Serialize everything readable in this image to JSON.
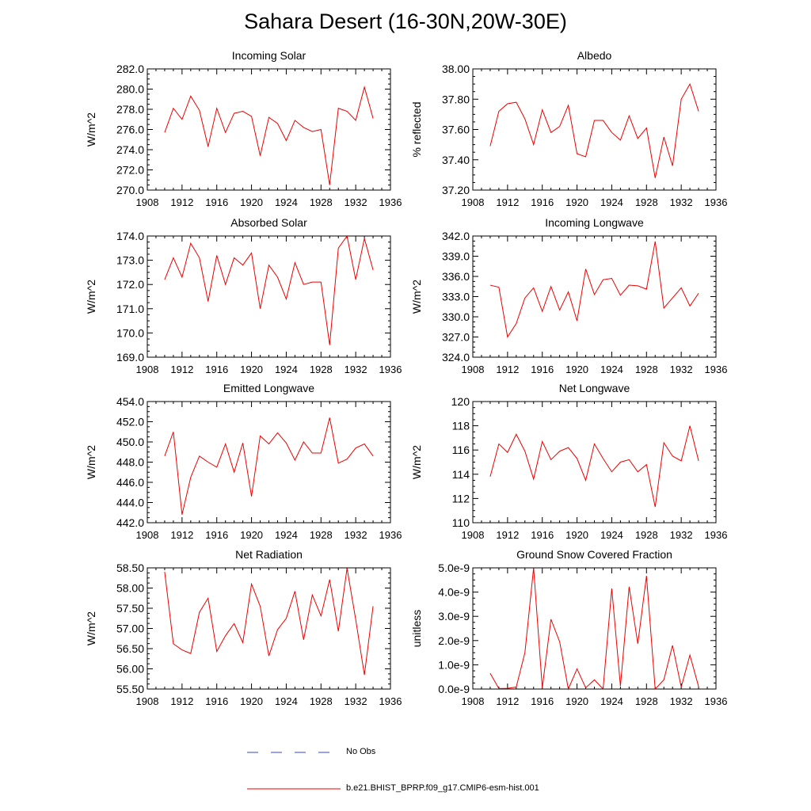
{
  "title": "Sahara Desert (16-30N,20W-30E)",
  "legend": {
    "items": [
      {
        "label": "No Obs",
        "color": "#3344cc",
        "style": "dashed"
      },
      {
        "label": "b.e21.BHIST_BPRP.f09_g17.CMIP6-esm-hist.001",
        "color": "#ee0000",
        "style": "solid"
      }
    ]
  },
  "colors": {
    "series": "#ee0000",
    "axis": "#000000"
  },
  "chart_data": [
    {
      "type": "line",
      "title": "Incoming Solar",
      "ylabel": "W/m^2",
      "xlim": [
        1908,
        1936
      ],
      "xticks": [
        "1908",
        "1912",
        "1916",
        "1920",
        "1924",
        "1928",
        "1932",
        "1936"
      ],
      "ylim": [
        270,
        282
      ],
      "yticks": [
        "270.0",
        "272.0",
        "274.0",
        "276.0",
        "278.0",
        "280.0",
        "282.0"
      ],
      "x": [
        1910,
        1911,
        1912,
        1913,
        1914,
        1915,
        1916,
        1917,
        1918,
        1919,
        1920,
        1921,
        1922,
        1923,
        1924,
        1925,
        1926,
        1927,
        1928,
        1929,
        1930,
        1931,
        1932,
        1933,
        1934
      ],
      "series": [
        {
          "values": [
            275.7,
            278.1,
            277.0,
            279.3,
            277.9,
            274.3,
            278.1,
            275.7,
            277.6,
            277.8,
            277.3,
            273.4,
            277.2,
            276.6,
            274.9,
            276.9,
            276.2,
            275.8,
            276.0,
            270.5,
            278.1,
            277.8,
            276.9,
            280.2,
            277.1
          ]
        }
      ]
    },
    {
      "type": "line",
      "title": "Albedo",
      "ylabel": "% reflected",
      "xlim": [
        1908,
        1936
      ],
      "xticks": [
        "1908",
        "1912",
        "1916",
        "1920",
        "1924",
        "1928",
        "1932",
        "1936"
      ],
      "ylim": [
        37.2,
        38.0
      ],
      "yticks": [
        "37.20",
        "37.40",
        "37.60",
        "37.80",
        "38.00"
      ],
      "x": [
        1910,
        1911,
        1912,
        1913,
        1914,
        1915,
        1916,
        1917,
        1918,
        1919,
        1920,
        1921,
        1922,
        1923,
        1924,
        1925,
        1926,
        1927,
        1928,
        1929,
        1930,
        1931,
        1932,
        1933,
        1934
      ],
      "series": [
        {
          "values": [
            37.49,
            37.72,
            37.77,
            37.78,
            37.67,
            37.5,
            37.73,
            37.58,
            37.62,
            37.76,
            37.44,
            37.42,
            37.66,
            37.66,
            37.58,
            37.53,
            37.69,
            37.54,
            37.61,
            37.28,
            37.55,
            37.36,
            37.8,
            37.9,
            37.72
          ]
        }
      ]
    },
    {
      "type": "line",
      "title": "Absorbed Solar",
      "ylabel": "W/m^2",
      "xlim": [
        1908,
        1936
      ],
      "xticks": [
        "1908",
        "1912",
        "1916",
        "1920",
        "1924",
        "1928",
        "1932",
        "1936"
      ],
      "ylim": [
        169,
        174
      ],
      "yticks": [
        "169.0",
        "170.0",
        "171.0",
        "172.0",
        "173.0",
        "174.0"
      ],
      "x": [
        1910,
        1911,
        1912,
        1913,
        1914,
        1915,
        1916,
        1917,
        1918,
        1919,
        1920,
        1921,
        1922,
        1923,
        1924,
        1925,
        1926,
        1927,
        1928,
        1929,
        1930,
        1931,
        1932,
        1933,
        1934
      ],
      "series": [
        {
          "values": [
            172.2,
            173.1,
            172.3,
            173.7,
            173.1,
            171.3,
            173.2,
            172.0,
            173.1,
            172.8,
            173.3,
            171.0,
            172.8,
            172.3,
            171.4,
            172.9,
            172.0,
            172.1,
            172.1,
            169.5,
            173.5,
            174.0,
            172.2,
            173.9,
            172.6
          ]
        }
      ]
    },
    {
      "type": "line",
      "title": "Incoming Longwave",
      "ylabel": "W/m^2",
      "xlim": [
        1908,
        1936
      ],
      "xticks": [
        "1908",
        "1912",
        "1916",
        "1920",
        "1924",
        "1928",
        "1932",
        "1936"
      ],
      "ylim": [
        324,
        342
      ],
      "yticks": [
        "324.0",
        "327.0",
        "330.0",
        "333.0",
        "336.0",
        "339.0",
        "342.0"
      ],
      "x": [
        1910,
        1911,
        1912,
        1913,
        1914,
        1915,
        1916,
        1917,
        1918,
        1919,
        1920,
        1921,
        1922,
        1923,
        1924,
        1925,
        1926,
        1927,
        1928,
        1929,
        1930,
        1931,
        1932,
        1933,
        1934
      ],
      "series": [
        {
          "values": [
            334.7,
            334.4,
            327.0,
            329.0,
            332.8,
            334.3,
            330.8,
            334.5,
            331.0,
            333.7,
            329.4,
            337.1,
            333.3,
            335.5,
            335.7,
            333.2,
            334.7,
            334.6,
            334.1,
            341.2,
            331.3,
            332.8,
            334.3,
            331.6,
            333.5
          ]
        }
      ]
    },
    {
      "type": "line",
      "title": "Emitted Longwave",
      "ylabel": "W/m^2",
      "xlim": [
        1908,
        1936
      ],
      "xticks": [
        "1908",
        "1912",
        "1916",
        "1920",
        "1924",
        "1928",
        "1932",
        "1936"
      ],
      "ylim": [
        442,
        454
      ],
      "yticks": [
        "442.0",
        "444.0",
        "446.0",
        "448.0",
        "450.0",
        "452.0",
        "454.0"
      ],
      "x": [
        1910,
        1911,
        1912,
        1913,
        1914,
        1915,
        1916,
        1917,
        1918,
        1919,
        1920,
        1921,
        1922,
        1923,
        1924,
        1925,
        1926,
        1927,
        1928,
        1929,
        1930,
        1931,
        1932,
        1933,
        1934
      ],
      "series": [
        {
          "values": [
            448.6,
            451.0,
            442.8,
            446.5,
            448.6,
            448.0,
            447.5,
            449.8,
            447.0,
            449.9,
            444.6,
            450.6,
            449.8,
            450.9,
            449.9,
            448.2,
            450.0,
            448.9,
            448.9,
            452.4,
            447.9,
            448.3,
            449.4,
            449.8,
            448.6
          ]
        }
      ]
    },
    {
      "type": "line",
      "title": "Net Longwave",
      "ylabel": "W/m^2",
      "xlim": [
        1908,
        1936
      ],
      "xticks": [
        "1908",
        "1912",
        "1916",
        "1920",
        "1924",
        "1928",
        "1932",
        "1936"
      ],
      "ylim": [
        110,
        120
      ],
      "yticks": [
        "110",
        "112",
        "114",
        "116",
        "118",
        "120"
      ],
      "x": [
        1910,
        1911,
        1912,
        1913,
        1914,
        1915,
        1916,
        1917,
        1918,
        1919,
        1920,
        1921,
        1922,
        1923,
        1924,
        1925,
        1926,
        1927,
        1928,
        1929,
        1930,
        1931,
        1932,
        1933,
        1934
      ],
      "series": [
        {
          "values": [
            113.8,
            116.5,
            115.8,
            117.3,
            115.9,
            113.6,
            116.7,
            115.2,
            115.9,
            116.2,
            115.3,
            113.5,
            116.5,
            115.3,
            114.2,
            115.0,
            115.2,
            114.2,
            114.8,
            111.3,
            116.6,
            115.5,
            115.1,
            118.0,
            115.1
          ]
        }
      ]
    },
    {
      "type": "line",
      "title": "Net Radiation",
      "ylabel": "W/m^2",
      "xlim": [
        1908,
        1936
      ],
      "xticks": [
        "1908",
        "1912",
        "1916",
        "1920",
        "1924",
        "1928",
        "1932",
        "1936"
      ],
      "ylim": [
        55.5,
        58.5
      ],
      "yticks": [
        "55.50",
        "56.00",
        "56.50",
        "57.00",
        "57.50",
        "58.00",
        "58.50"
      ],
      "x": [
        1910,
        1911,
        1912,
        1913,
        1914,
        1915,
        1916,
        1917,
        1918,
        1919,
        1920,
        1921,
        1922,
        1923,
        1924,
        1925,
        1926,
        1927,
        1928,
        1929,
        1930,
        1931,
        1932,
        1933,
        1934
      ],
      "series": [
        {
          "values": [
            58.4,
            56.62,
            56.47,
            56.38,
            57.4,
            57.75,
            56.43,
            56.82,
            57.12,
            56.65,
            58.1,
            57.55,
            56.32,
            56.97,
            57.25,
            57.92,
            56.72,
            57.83,
            57.31,
            58.21,
            56.93,
            58.49,
            57.22,
            55.85,
            57.55
          ]
        }
      ]
    },
    {
      "type": "line",
      "title": "Ground Snow Covered Fraction",
      "ylabel": "unitless",
      "xlim": [
        1908,
        1936
      ],
      "xticks": [
        "1908",
        "1912",
        "1916",
        "1920",
        "1924",
        "1928",
        "1932",
        "1936"
      ],
      "ylim": [
        0,
        5e-09
      ],
      "yticks": [
        "0.0e-9",
        "1.0e-9",
        "2.0e-9",
        "3.0e-9",
        "4.0e-9",
        "5.0e-9"
      ],
      "x": [
        1910,
        1911,
        1912,
        1913,
        1914,
        1915,
        1916,
        1917,
        1918,
        1919,
        1920,
        1921,
        1922,
        1923,
        1924,
        1925,
        1926,
        1927,
        1928,
        1929,
        1930,
        1931,
        1932,
        1933,
        1934
      ],
      "series": [
        {
          "values": [
            6.5e-10,
            2e-11,
            3e-11,
            8e-11,
            1.5e-09,
            5e-09,
            5e-11,
            2.88e-09,
            1.95e-09,
            0.0,
            8.3e-10,
            5e-11,
            3.8e-10,
            0.0,
            4.15e-09,
            1.2e-10,
            4.22e-09,
            1.87e-09,
            4.67e-09,
            0.0,
            3.8e-10,
            1.8e-09,
            8e-11,
            1.4e-09,
            1e-10
          ]
        }
      ]
    }
  ]
}
